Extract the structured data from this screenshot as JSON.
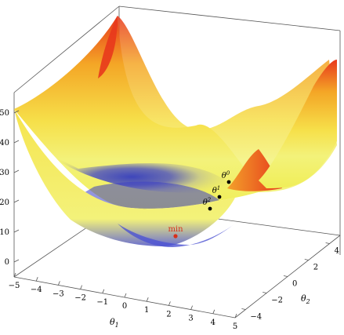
{
  "chart_data": {
    "type": "surface",
    "function": "z = theta1^2 + theta2^2",
    "xlabel": "θ1",
    "ylabel": "θ2",
    "zlabel": "",
    "xlim": [
      -5,
      5
    ],
    "ylim": [
      -5,
      5
    ],
    "zlim": [
      0,
      50
    ],
    "x_ticks": [
      -5,
      -4,
      -3,
      -2,
      -1,
      0,
      1,
      2,
      3,
      4,
      5
    ],
    "y_ticks": [
      -4,
      -2,
      0,
      2,
      4
    ],
    "z_ticks": [
      0,
      10,
      20,
      30,
      40,
      50
    ],
    "colormap": [
      "#2a35c8",
      "#f2f250",
      "#f5c02a",
      "#e03a1e"
    ],
    "grid": false,
    "points": [
      {
        "label": "θ0",
        "x": -2.8,
        "y": 4.0,
        "z": 24
      },
      {
        "label": "θ1",
        "x": -2.6,
        "y": 3.3,
        "z": 17.6
      },
      {
        "label": "θ2",
        "x": -2.3,
        "y": 2.7,
        "z": 12.6
      },
      {
        "label": "min",
        "x": 0,
        "y": 0,
        "z": 0,
        "color": "#d8301a"
      }
    ]
  },
  "axis_text": {
    "x_title_main": "θ",
    "x_title_sub": "1",
    "y_title_main": "θ",
    "y_title_sub": "2"
  }
}
